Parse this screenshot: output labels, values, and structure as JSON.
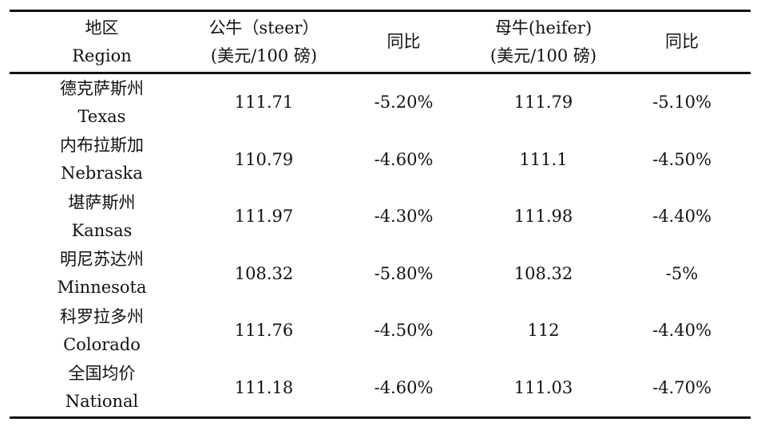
{
  "table": {
    "headers": [
      {
        "zh": "地区",
        "en": "Region"
      },
      {
        "zh": "公牛（steer）",
        "en": "(美元/100 磅)"
      },
      {
        "zh": "同比",
        "en": ""
      },
      {
        "zh": "母牛(heifer)",
        "en": "(美元/100 磅)"
      },
      {
        "zh": "同比",
        "en": ""
      }
    ],
    "rows": [
      {
        "region_zh": "德克萨斯州",
        "region_en": "Texas",
        "steer": "111.71",
        "steer_yoy": "-5.20%",
        "heifer": "111.79",
        "heifer_yoy": "-5.10%"
      },
      {
        "region_zh": "内布拉斯加",
        "region_en": "Nebraska",
        "steer": "110.79",
        "steer_yoy": "-4.60%",
        "heifer": "111.1",
        "heifer_yoy": "-4.50%"
      },
      {
        "region_zh": "堪萨斯州",
        "region_en": "Kansas",
        "steer": "111.97",
        "steer_yoy": "-4.30%",
        "heifer": "111.98",
        "heifer_yoy": "-4.40%"
      },
      {
        "region_zh": "明尼苏达州",
        "region_en": "Minnesota",
        "steer": "108.32",
        "steer_yoy": "-5.80%",
        "heifer": "108.32",
        "heifer_yoy": "-5%"
      },
      {
        "region_zh": "科罗拉多州",
        "region_en": "Colorado",
        "steer": "111.76",
        "steer_yoy": "-4.50%",
        "heifer": "112",
        "heifer_yoy": "-4.40%"
      },
      {
        "region_zh": "全国均价",
        "region_en": "National",
        "steer": "111.18",
        "steer_yoy": "-4.60%",
        "heifer": "111.03",
        "heifer_yoy": "-4.70%"
      }
    ]
  }
}
